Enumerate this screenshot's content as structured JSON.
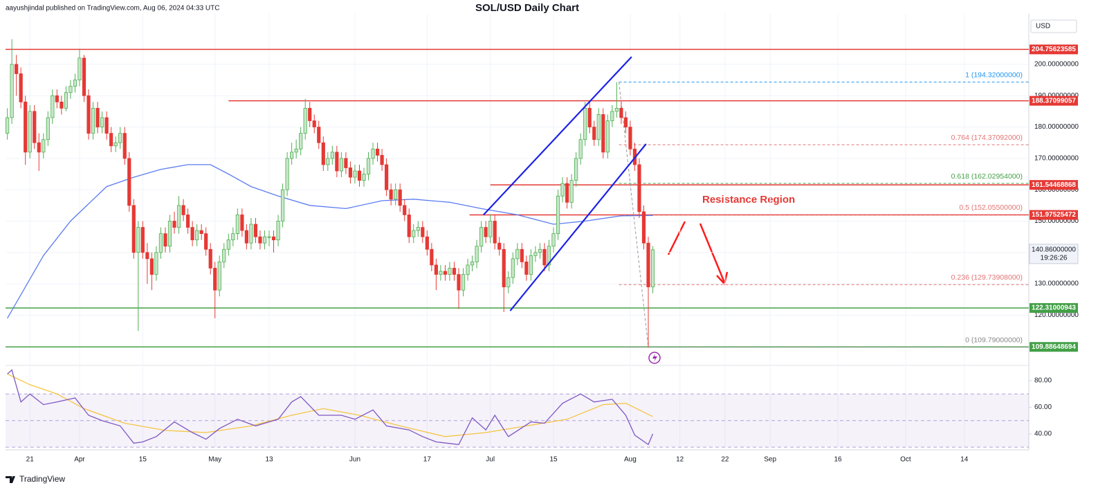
{
  "header": {
    "publisher": "aayushjindal published on TradingView.com, Aug 06, 2024 04:33 UTC",
    "logo": "TradingView"
  },
  "chart_data": {
    "type": "candlestick",
    "title": "SOL/USD Daily Chart",
    "currency": "USD",
    "up_color": "#4caf50",
    "down_color": "#e53935",
    "candles": [
      [
        178,
        186,
        176,
        183
      ],
      [
        183,
        208,
        181,
        200
      ],
      [
        200,
        203,
        190,
        197
      ],
      [
        197,
        199,
        186,
        188
      ],
      [
        188,
        190,
        168,
        172
      ],
      [
        172,
        187,
        170,
        185
      ],
      [
        185,
        187,
        173,
        175
      ],
      [
        175,
        178,
        166,
        172
      ],
      [
        172,
        178,
        170,
        176
      ],
      [
        176,
        185,
        174,
        183
      ],
      [
        183,
        192,
        181,
        190
      ],
      [
        190,
        192,
        186,
        188
      ],
      [
        188,
        190,
        184,
        186
      ],
      [
        186,
        193,
        185,
        191
      ],
      [
        191,
        195,
        189,
        193
      ],
      [
        193,
        197,
        191,
        195
      ],
      [
        195,
        205,
        193,
        202
      ],
      [
        202,
        203,
        188,
        190
      ],
      [
        190,
        192,
        176,
        178
      ],
      [
        178,
        188,
        176,
        186
      ],
      [
        186,
        188,
        178,
        180
      ],
      [
        180,
        185,
        178,
        183
      ],
      [
        183,
        185,
        176,
        178
      ],
      [
        178,
        180,
        172,
        174
      ],
      [
        174,
        177,
        172,
        175
      ],
      [
        175,
        180,
        173,
        178
      ],
      [
        178,
        180,
        168,
        170
      ],
      [
        170,
        172,
        153,
        155
      ],
      [
        155,
        157,
        138,
        140
      ],
      [
        140,
        150,
        115,
        148
      ],
      [
        148,
        150,
        138,
        140
      ],
      [
        140,
        143,
        130,
        138
      ],
      [
        138,
        140,
        128,
        133
      ],
      [
        133,
        142,
        131,
        140
      ],
      [
        140,
        148,
        138,
        146
      ],
      [
        146,
        148,
        140,
        142
      ],
      [
        142,
        152,
        140,
        150
      ],
      [
        150,
        153,
        146,
        148
      ],
      [
        148,
        158,
        146,
        155
      ],
      [
        155,
        157,
        150,
        152
      ],
      [
        152,
        154,
        146,
        148
      ],
      [
        148,
        150,
        142,
        144
      ],
      [
        144,
        149,
        142,
        147
      ],
      [
        147,
        149,
        144,
        146
      ],
      [
        146,
        148,
        139,
        141
      ],
      [
        141,
        143,
        133,
        135
      ],
      [
        135,
        137,
        119,
        128
      ],
      [
        128,
        139,
        126,
        137
      ],
      [
        137,
        143,
        135,
        141
      ],
      [
        141,
        146,
        139,
        144
      ],
      [
        144,
        148,
        142,
        146
      ],
      [
        146,
        154,
        144,
        152
      ],
      [
        152,
        154,
        145,
        147
      ],
      [
        147,
        149,
        141,
        143
      ],
      [
        143,
        151,
        141,
        149
      ],
      [
        149,
        151,
        143,
        145
      ],
      [
        145,
        147,
        141,
        143
      ],
      [
        143,
        147,
        141,
        145
      ],
      [
        145,
        147,
        142,
        145
      ],
      [
        145,
        147,
        140,
        144
      ],
      [
        144,
        152,
        142,
        150
      ],
      [
        150,
        162,
        148,
        160
      ],
      [
        160,
        172,
        158,
        170
      ],
      [
        170,
        175,
        168,
        172
      ],
      [
        172,
        176,
        170,
        173
      ],
      [
        173,
        180,
        171,
        178
      ],
      [
        178,
        189,
        176,
        186
      ],
      [
        186,
        188,
        180,
        182
      ],
      [
        182,
        184,
        178,
        180
      ],
      [
        180,
        182,
        173,
        175
      ],
      [
        175,
        177,
        166,
        168
      ],
      [
        168,
        172,
        166,
        170
      ],
      [
        170,
        174,
        168,
        172
      ],
      [
        172,
        174,
        164,
        166
      ],
      [
        166,
        172,
        164,
        170
      ],
      [
        170,
        172,
        165,
        167
      ],
      [
        167,
        169,
        162,
        164
      ],
      [
        164,
        168,
        162,
        166
      ],
      [
        166,
        168,
        161,
        163
      ],
      [
        163,
        167,
        161,
        165
      ],
      [
        165,
        172,
        163,
        170
      ],
      [
        170,
        175,
        168,
        173
      ],
      [
        173,
        175,
        169,
        171
      ],
      [
        171,
        173,
        166,
        168
      ],
      [
        168,
        170,
        158,
        160
      ],
      [
        160,
        162,
        155,
        157
      ],
      [
        157,
        162,
        155,
        160
      ],
      [
        160,
        162,
        153,
        155
      ],
      [
        155,
        157,
        150,
        152
      ],
      [
        152,
        154,
        143,
        145
      ],
      [
        145,
        149,
        143,
        147
      ],
      [
        147,
        150,
        145,
        148
      ],
      [
        148,
        150,
        143,
        145
      ],
      [
        145,
        147,
        139,
        141
      ],
      [
        141,
        143,
        134,
        136
      ],
      [
        136,
        138,
        128,
        133
      ],
      [
        133,
        136,
        131,
        134
      ],
      [
        134,
        136,
        131,
        133
      ],
      [
        133,
        137,
        131,
        135
      ],
      [
        135,
        137,
        131,
        133
      ],
      [
        133,
        135,
        122,
        128
      ],
      [
        128,
        135,
        126,
        133
      ],
      [
        133,
        138,
        131,
        136
      ],
      [
        136,
        139,
        134,
        137
      ],
      [
        137,
        144,
        135,
        142
      ],
      [
        142,
        150,
        140,
        148
      ],
      [
        148,
        150,
        143,
        145
      ],
      [
        145,
        152,
        143,
        150
      ],
      [
        150,
        152,
        141,
        143
      ],
      [
        143,
        145,
        139,
        141
      ],
      [
        141,
        143,
        121,
        129
      ],
      [
        129,
        134,
        127,
        132
      ],
      [
        132,
        140,
        130,
        138
      ],
      [
        138,
        143,
        136,
        141
      ],
      [
        141,
        143,
        135,
        137
      ],
      [
        137,
        139,
        131,
        133
      ],
      [
        133,
        141,
        131,
        139
      ],
      [
        139,
        142,
        137,
        140
      ],
      [
        140,
        143,
        138,
        141
      ],
      [
        141,
        143,
        134,
        136
      ],
      [
        136,
        144,
        134,
        142
      ],
      [
        142,
        148,
        140,
        146
      ],
      [
        146,
        160,
        144,
        158
      ],
      [
        158,
        164,
        156,
        162
      ],
      [
        162,
        164,
        154,
        156
      ],
      [
        156,
        165,
        154,
        163
      ],
      [
        163,
        172,
        161,
        170
      ],
      [
        170,
        178,
        168,
        176
      ],
      [
        176,
        188,
        174,
        186
      ],
      [
        186,
        188,
        178,
        180
      ],
      [
        180,
        182,
        174,
        176
      ],
      [
        176,
        186,
        174,
        184
      ],
      [
        184,
        186,
        170,
        172
      ],
      [
        172,
        184,
        170,
        182
      ],
      [
        182,
        187,
        180,
        185
      ],
      [
        185,
        194.32,
        183,
        186
      ],
      [
        186,
        188,
        181,
        183
      ],
      [
        183,
        185,
        178,
        180
      ],
      [
        180,
        182,
        171,
        173
      ],
      [
        173,
        175,
        166,
        168
      ],
      [
        168,
        170,
        151,
        153
      ],
      [
        153,
        155,
        141,
        143
      ],
      [
        143,
        145,
        109.79,
        129
      ],
      [
        129,
        142,
        127,
        140.86
      ]
    ],
    "xlim": [
      -0.4,
      226.3
    ],
    "xticks": [
      {
        "value": 5,
        "label": "21"
      },
      {
        "value": 16,
        "label": "Apr"
      },
      {
        "value": 30,
        "label": "15"
      },
      {
        "value": 46,
        "label": "May"
      },
      {
        "value": 58,
        "label": "13"
      },
      {
        "value": 77,
        "label": "Jun"
      },
      {
        "value": 93,
        "label": "17"
      },
      {
        "value": 107,
        "label": "Jul"
      },
      {
        "value": 121,
        "label": "15"
      },
      {
        "value": 138,
        "label": "Aug"
      },
      {
        "value": 149,
        "label": "12"
      },
      {
        "value": 159,
        "label": "22"
      },
      {
        "value": 169,
        "label": "Sep"
      },
      {
        "value": 184,
        "label": "16"
      },
      {
        "value": 199,
        "label": "Oct"
      },
      {
        "value": 212,
        "label": "14"
      }
    ],
    "ylim": [
      104.2,
      216.1
    ],
    "yticks": [
      {
        "value": 120,
        "label": "120.00000000"
      },
      {
        "value": 130,
        "label": "130.00000000"
      },
      {
        "value": 140,
        "label": "140.00000000"
      },
      {
        "value": 150,
        "label": "150.00000000"
      },
      {
        "value": 160,
        "label": "160.00000000"
      },
      {
        "value": 170,
        "label": "170.00000000"
      },
      {
        "value": 180,
        "label": "180.00000000"
      },
      {
        "value": 190,
        "label": "190.00000000"
      },
      {
        "value": 200,
        "label": "200.00000000"
      }
    ],
    "grid": true,
    "current_price": {
      "value": 140.86,
      "label": "140.86000000",
      "countdown": "19:26:26"
    },
    "ma": {
      "color": "#5b7cf0",
      "x": [
        0,
        8,
        14,
        22,
        28,
        34,
        40,
        45,
        49,
        54,
        60,
        67,
        75,
        83,
        90,
        98,
        105,
        113,
        121,
        128,
        136,
        143
      ],
      "values": [
        119,
        139,
        150,
        161,
        164,
        166.5,
        168,
        168,
        165,
        161,
        158,
        155,
        154,
        156.5,
        157,
        156,
        154,
        152,
        149,
        150,
        151.7,
        151.8
      ]
    },
    "levels": [
      {
        "value": 204.75623585,
        "color": "#e53935",
        "from": -0.4
      },
      {
        "value": 188.37099057,
        "color": "#e53935",
        "from": 49
      },
      {
        "value": 161.54468868,
        "color": "#e53935",
        "from": 107
      },
      {
        "value": 151.97525472,
        "color": "#e53935",
        "from": 102.4
      },
      {
        "value": 122.31000943,
        "color": "#43a047",
        "from": -0.4
      },
      {
        "value": 109.88648694,
        "color": "#43a047",
        "from": -0.4
      }
    ],
    "trendlines": [
      {
        "color": "#1c22e6",
        "x": [
          105.5,
          138.3
        ],
        "values": [
          152,
          202.4
        ]
      },
      {
        "color": "#1c22e6",
        "x": [
          111.4,
          141.5
        ],
        "values": [
          121.4,
          174.6
        ]
      }
    ],
    "fib": {
      "x": [
        135.5,
        142
      ],
      "levels": [
        {
          "label": "1 (194.32000000)",
          "value": 194.32,
          "color": "#2196f3"
        },
        {
          "label": "0.764 (174.37092000)",
          "value": 174.37092,
          "color": "#e57373"
        },
        {
          "label": "0.618 (162.02954000)",
          "value": 162.02954,
          "color": "#43a047"
        },
        {
          "label": "0.5 (152.05500000)",
          "value": 152.055,
          "color": "#e57373"
        },
        {
          "label": "0.236 (129.73908000)",
          "value": 129.73908,
          "color": "#e57373"
        },
        {
          "label": "0 (109.79000000)",
          "value": 109.79,
          "color": "#888888"
        }
      ]
    },
    "annotation": "Resistance Region",
    "rsi": {
      "color": "#7e57c2",
      "ylim": [
        28,
        90.4
      ],
      "yticks": [
        {
          "value": 40,
          "label": "40.00"
        },
        {
          "value": 60,
          "label": "60.00"
        },
        {
          "value": 80,
          "label": "80.00"
        }
      ],
      "levels": [
        30,
        50,
        70
      ],
      "x": [
        0,
        1,
        3,
        5,
        8,
        11,
        15,
        18,
        21,
        25,
        28,
        30,
        33,
        37,
        41,
        44,
        47,
        51,
        55,
        60,
        63,
        65,
        69,
        74,
        77,
        81,
        84,
        89,
        92,
        95,
        100,
        103,
        106,
        108,
        111,
        116,
        119,
        123,
        127,
        130,
        134,
        137,
        139,
        142,
        143
      ],
      "values": [
        85,
        88,
        64,
        70,
        62,
        64,
        67,
        54,
        50,
        46,
        33,
        34,
        38,
        49,
        41,
        36,
        44,
        51,
        46,
        51,
        64,
        68,
        54,
        54,
        51,
        58,
        46,
        43,
        38,
        34,
        32,
        52,
        43,
        54,
        38,
        49,
        48,
        63,
        70,
        64,
        66,
        54,
        39,
        32,
        40
      ],
      "ma": {
        "color": "#f5c542",
        "x": [
          0,
          5,
          11,
          17,
          26,
          35,
          44,
          54,
          63,
          70,
          78,
          87,
          97,
          106,
          115,
          124,
          132,
          137,
          143
        ],
        "values": [
          85,
          77,
          70,
          59,
          48,
          42.6,
          41,
          46,
          54,
          59,
          54,
          46,
          38,
          41,
          46,
          51,
          62,
          63,
          53
        ]
      }
    }
  }
}
